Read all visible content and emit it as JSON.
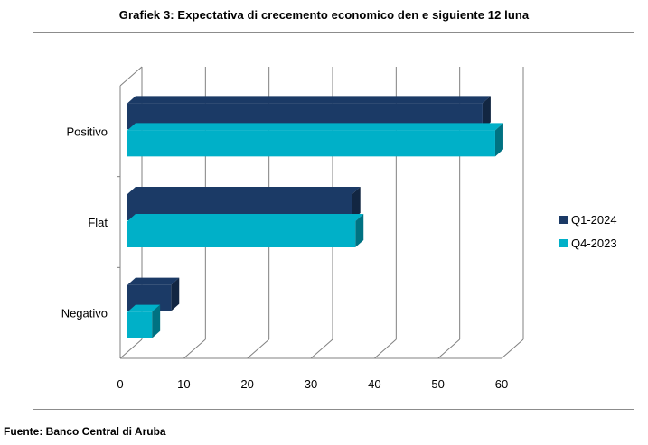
{
  "title": "Grafiek 3: Expectativa  di crecemento  economico  den e siguiente  12 luna",
  "source": "Fuente: Banco Central  di Aruba",
  "colors": {
    "q1_2024": "#1b3a66",
    "q4_2023": "#00b0c8",
    "grid": "#808080"
  },
  "chart_data": {
    "type": "bar",
    "orientation": "horizontal",
    "three_d": true,
    "categories": [
      "Positivo",
      "Flat",
      "Negativo"
    ],
    "series": [
      {
        "name": "Q1-2024",
        "values": [
          57,
          36.5,
          8
        ]
      },
      {
        "name": "Q4-2023",
        "values": [
          59,
          37,
          5
        ]
      }
    ],
    "xlim": [
      0,
      60
    ],
    "xticks": [
      "0",
      "10",
      "20",
      "30",
      "40",
      "50",
      "60"
    ],
    "grid": true,
    "legend_position": "right"
  }
}
